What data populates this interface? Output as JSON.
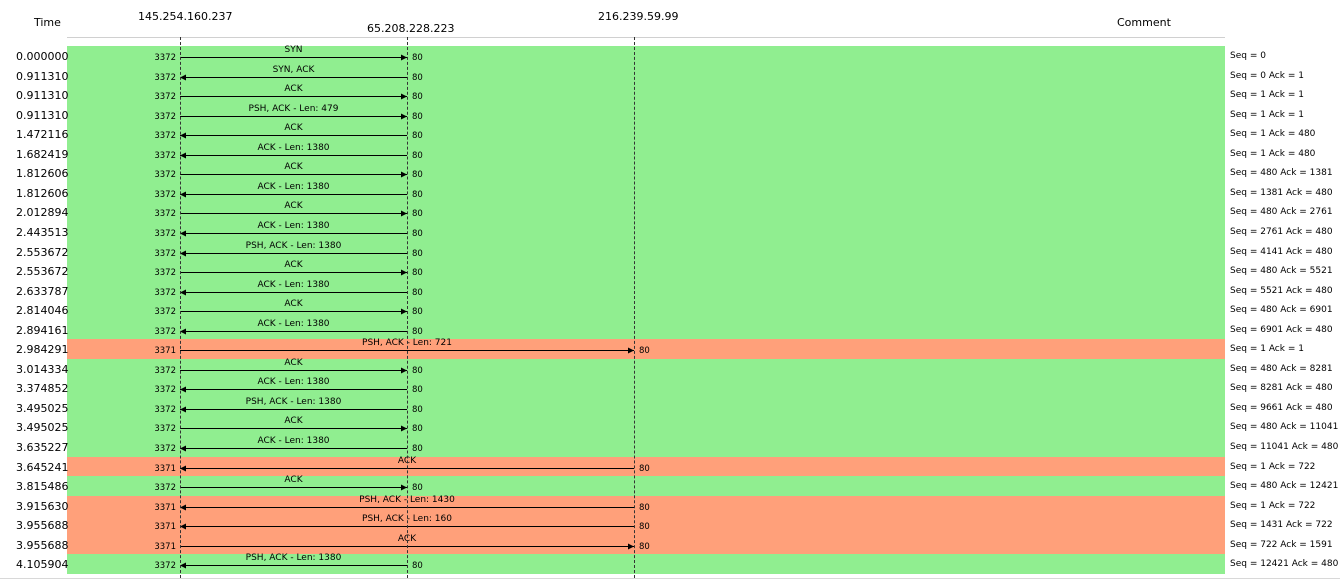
{
  "header": {
    "time": "Time",
    "host1": "145.254.160.237",
    "host2": "65.208.228.223",
    "host3": "216.239.59.99",
    "comment": "Comment"
  },
  "colors": {
    "green": "#90ee90",
    "salmon": "#ffa07a"
  },
  "rows": [
    {
      "time": "0.000000",
      "label": "SYN",
      "src_port": "3372",
      "dst_port": "80",
      "dst": "host2",
      "dir": "right",
      "color": "green",
      "comment": "Seq = 0"
    },
    {
      "time": "0.911310",
      "label": "SYN, ACK",
      "src_port": "3372",
      "dst_port": "80",
      "dst": "host2",
      "dir": "left",
      "color": "green",
      "comment": "Seq = 0 Ack = 1"
    },
    {
      "time": "0.911310",
      "label": "ACK",
      "src_port": "3372",
      "dst_port": "80",
      "dst": "host2",
      "dir": "right",
      "color": "green",
      "comment": "Seq = 1 Ack = 1"
    },
    {
      "time": "0.911310",
      "label": "PSH, ACK - Len: 479",
      "src_port": "3372",
      "dst_port": "80",
      "dst": "host2",
      "dir": "right",
      "color": "green",
      "comment": "Seq = 1 Ack = 1"
    },
    {
      "time": "1.472116",
      "label": "ACK",
      "src_port": "3372",
      "dst_port": "80",
      "dst": "host2",
      "dir": "left",
      "color": "green",
      "comment": "Seq = 1 Ack = 480"
    },
    {
      "time": "1.682419",
      "label": "ACK - Len: 1380",
      "src_port": "3372",
      "dst_port": "80",
      "dst": "host2",
      "dir": "left",
      "color": "green",
      "comment": "Seq = 1 Ack = 480"
    },
    {
      "time": "1.812606",
      "label": "ACK",
      "src_port": "3372",
      "dst_port": "80",
      "dst": "host2",
      "dir": "right",
      "color": "green",
      "comment": "Seq = 480 Ack = 1381"
    },
    {
      "time": "1.812606",
      "label": "ACK - Len: 1380",
      "src_port": "3372",
      "dst_port": "80",
      "dst": "host2",
      "dir": "left",
      "color": "green",
      "comment": "Seq = 1381 Ack = 480"
    },
    {
      "time": "2.012894",
      "label": "ACK",
      "src_port": "3372",
      "dst_port": "80",
      "dst": "host2",
      "dir": "right",
      "color": "green",
      "comment": "Seq = 480 Ack = 2761"
    },
    {
      "time": "2.443513",
      "label": "ACK - Len: 1380",
      "src_port": "3372",
      "dst_port": "80",
      "dst": "host2",
      "dir": "left",
      "color": "green",
      "comment": "Seq = 2761 Ack = 480"
    },
    {
      "time": "2.553672",
      "label": "PSH, ACK - Len: 1380",
      "src_port": "3372",
      "dst_port": "80",
      "dst": "host2",
      "dir": "left",
      "color": "green",
      "comment": "Seq = 4141 Ack = 480"
    },
    {
      "time": "2.553672",
      "label": "ACK",
      "src_port": "3372",
      "dst_port": "80",
      "dst": "host2",
      "dir": "right",
      "color": "green",
      "comment": "Seq = 480 Ack = 5521"
    },
    {
      "time": "2.633787",
      "label": "ACK - Len: 1380",
      "src_port": "3372",
      "dst_port": "80",
      "dst": "host2",
      "dir": "left",
      "color": "green",
      "comment": "Seq = 5521 Ack = 480"
    },
    {
      "time": "2.814046",
      "label": "ACK",
      "src_port": "3372",
      "dst_port": "80",
      "dst": "host2",
      "dir": "right",
      "color": "green",
      "comment": "Seq = 480 Ack = 6901"
    },
    {
      "time": "2.894161",
      "label": "ACK - Len: 1380",
      "src_port": "3372",
      "dst_port": "80",
      "dst": "host2",
      "dir": "left",
      "color": "green",
      "comment": "Seq = 6901 Ack = 480"
    },
    {
      "time": "2.984291",
      "label": "PSH, ACK - Len: 721",
      "src_port": "3371",
      "dst_port": "80",
      "dst": "host3",
      "dir": "right",
      "color": "salmon",
      "comment": "Seq = 1 Ack = 1"
    },
    {
      "time": "3.014334",
      "label": "ACK",
      "src_port": "3372",
      "dst_port": "80",
      "dst": "host2",
      "dir": "right",
      "color": "green",
      "comment": "Seq = 480 Ack = 8281"
    },
    {
      "time": "3.374852",
      "label": "ACK - Len: 1380",
      "src_port": "3372",
      "dst_port": "80",
      "dst": "host2",
      "dir": "left",
      "color": "green",
      "comment": "Seq = 8281 Ack = 480"
    },
    {
      "time": "3.495025",
      "label": "PSH, ACK - Len: 1380",
      "src_port": "3372",
      "dst_port": "80",
      "dst": "host2",
      "dir": "left",
      "color": "green",
      "comment": "Seq = 9661 Ack = 480"
    },
    {
      "time": "3.495025",
      "label": "ACK",
      "src_port": "3372",
      "dst_port": "80",
      "dst": "host2",
      "dir": "right",
      "color": "green",
      "comment": "Seq = 480 Ack = 11041"
    },
    {
      "time": "3.635227",
      "label": "ACK - Len: 1380",
      "src_port": "3372",
      "dst_port": "80",
      "dst": "host2",
      "dir": "left",
      "color": "green",
      "comment": "Seq = 11041 Ack = 480"
    },
    {
      "time": "3.645241",
      "label": "ACK",
      "src_port": "3371",
      "dst_port": "80",
      "dst": "host3",
      "dir": "left",
      "color": "salmon",
      "comment": "Seq = 1 Ack = 722"
    },
    {
      "time": "3.815486",
      "label": "ACK",
      "src_port": "3372",
      "dst_port": "80",
      "dst": "host2",
      "dir": "right",
      "color": "green",
      "comment": "Seq = 480 Ack = 12421"
    },
    {
      "time": "3.915630",
      "label": "PSH, ACK - Len: 1430",
      "src_port": "3371",
      "dst_port": "80",
      "dst": "host3",
      "dir": "left",
      "color": "salmon",
      "comment": "Seq = 1 Ack = 722"
    },
    {
      "time": "3.955688",
      "label": "PSH, ACK - Len: 160",
      "src_port": "3371",
      "dst_port": "80",
      "dst": "host3",
      "dir": "left",
      "color": "salmon",
      "comment": "Seq = 1431 Ack = 722"
    },
    {
      "time": "3.955688",
      "label": "ACK",
      "src_port": "3371",
      "dst_port": "80",
      "dst": "host3",
      "dir": "right",
      "color": "salmon",
      "comment": "Seq = 722 Ack = 1591"
    },
    {
      "time": "4.105904",
      "label": "PSH, ACK - Len: 1380",
      "src_port": "3372",
      "dst_port": "80",
      "dst": "host2",
      "dir": "left",
      "color": "green",
      "comment": "Seq = 12421 Ack = 480"
    }
  ]
}
